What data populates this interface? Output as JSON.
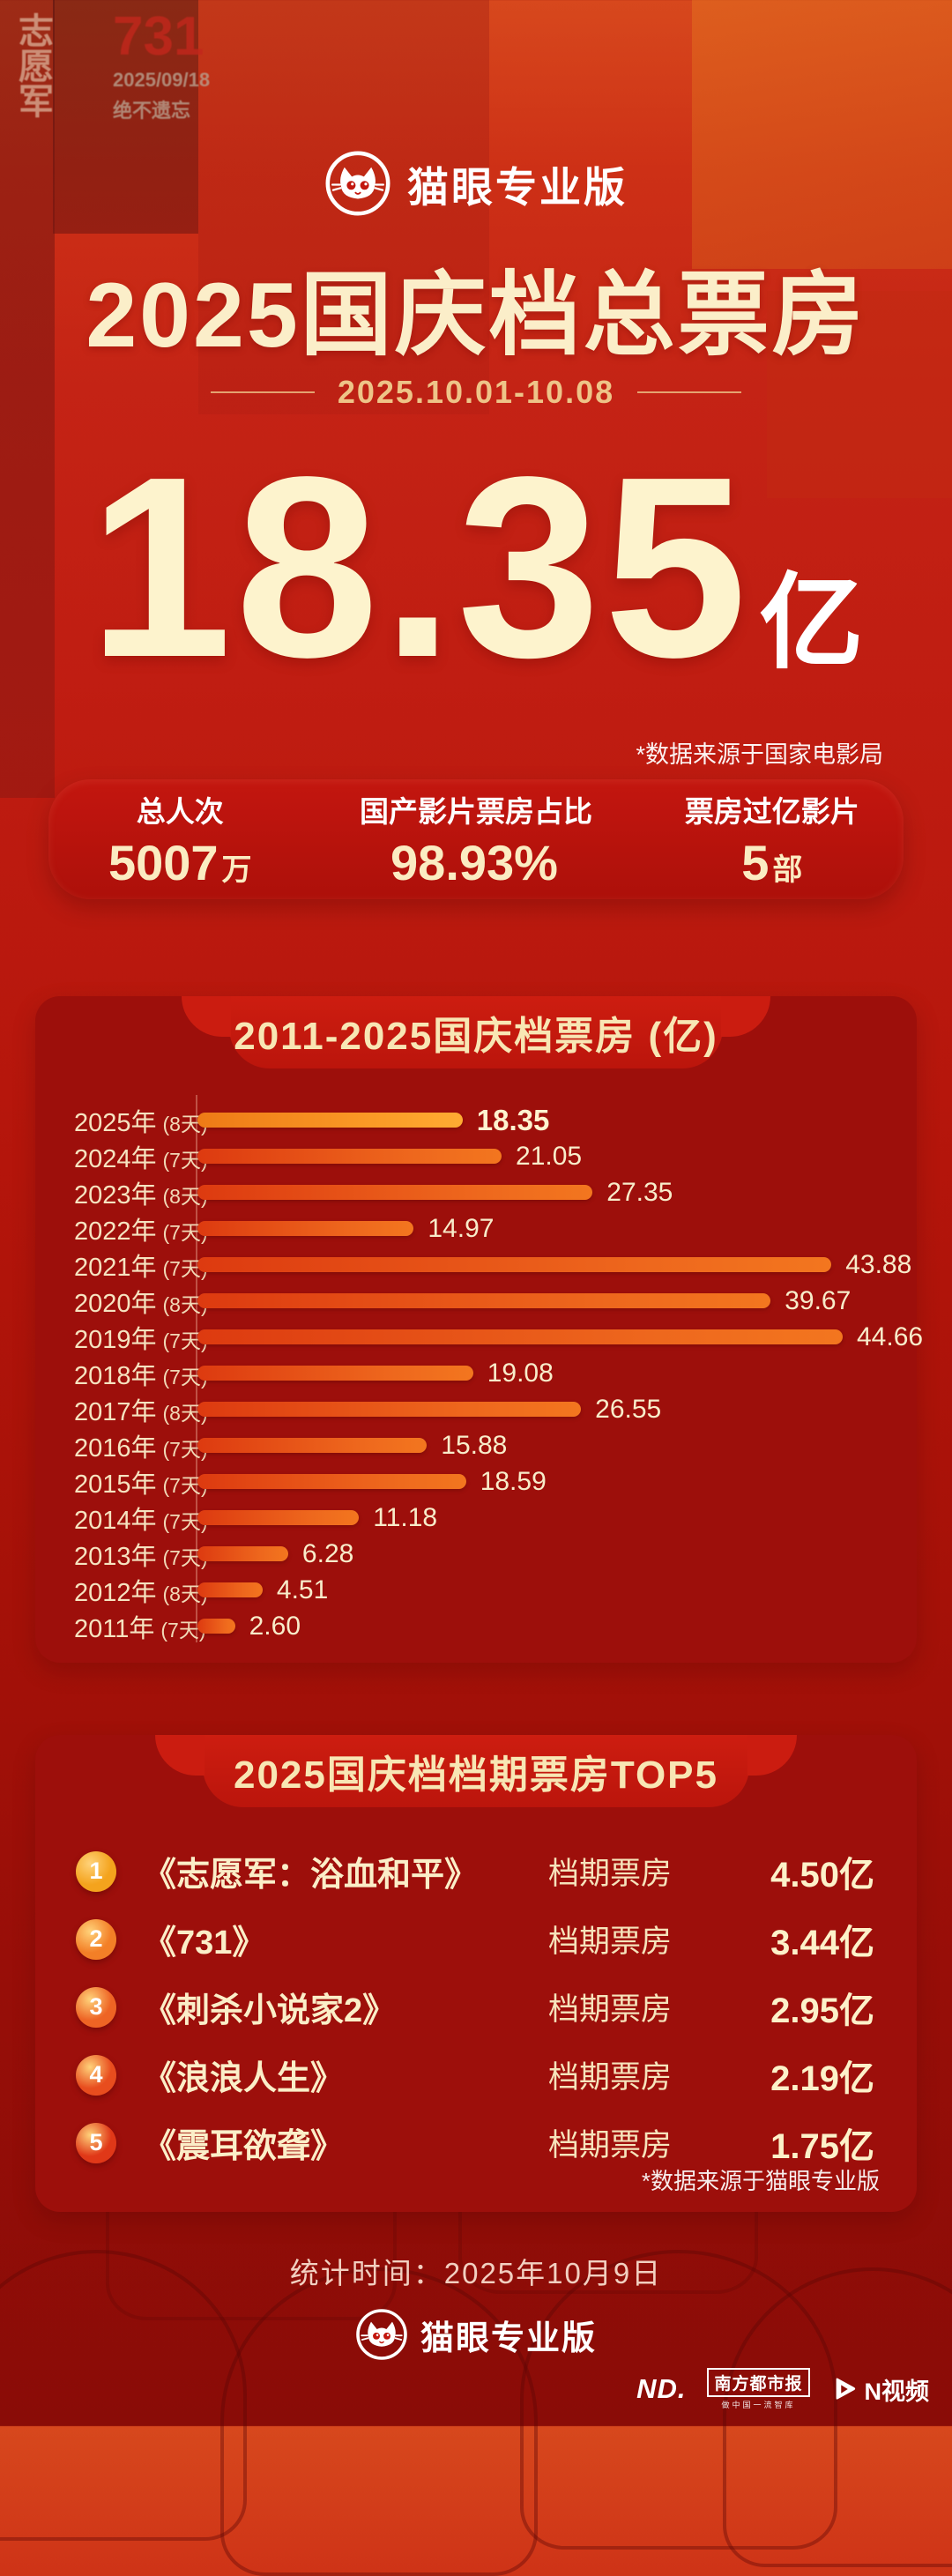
{
  "brand": {
    "name": "猫眼专业版"
  },
  "header": {
    "title": "2025国庆档总票房",
    "date_range": "2025.10.01-10.08"
  },
  "headline": {
    "value": "18.35",
    "unit": "亿",
    "source_note": "*数据来源于国家电影局"
  },
  "stats": {
    "items": [
      {
        "label": "总人次",
        "value": "5007",
        "unit": "万"
      },
      {
        "label": "国产影片票房占比",
        "value": "98.93%",
        "unit": ""
      },
      {
        "label": "票房过亿影片",
        "value": "5",
        "unit": "部"
      }
    ]
  },
  "chart_data": {
    "type": "bar",
    "orientation": "horizontal",
    "title": "2011-2025国庆档票房 (亿)",
    "unit": "亿",
    "categories": [
      "2025年",
      "2024年",
      "2023年",
      "2022年",
      "2021年",
      "2020年",
      "2019年",
      "2018年",
      "2017年",
      "2016年",
      "2015年",
      "2014年",
      "2013年",
      "2012年",
      "2011年"
    ],
    "period_days": [
      "(8天)",
      "(7天)",
      "(8天)",
      "(7天)",
      "(7天)",
      "(8天)",
      "(7天)",
      "(7天)",
      "(8天)",
      "(7天)",
      "(7天)",
      "(7天)",
      "(7天)",
      "(8天)",
      "(7天)"
    ],
    "values": [
      18.35,
      21.05,
      27.35,
      14.97,
      43.88,
      39.67,
      44.66,
      19.08,
      26.55,
      15.88,
      18.59,
      11.18,
      6.28,
      4.51,
      2.6
    ],
    "highlight_index": 0,
    "xlim": [
      0,
      48
    ],
    "grid": false,
    "legend": "none",
    "bar_color": "#ee5f1c",
    "highlight_color": "#f99b21"
  },
  "top5": {
    "title": "2025国庆档档期票房TOP5",
    "metric_label": "档期票房",
    "badge_colors": [
      "#f4a31d",
      "#f37f27",
      "#ee6424",
      "#e84d1e",
      "#e03818"
    ],
    "items": [
      {
        "rank": "1",
        "movie": "《志愿军：浴血和平》",
        "value": "4.50亿"
      },
      {
        "rank": "2",
        "movie": "《731》",
        "value": "3.44亿"
      },
      {
        "rank": "3",
        "movie": "《刺杀小说家2》",
        "value": "2.95亿"
      },
      {
        "rank": "4",
        "movie": "《浪浪人生》",
        "value": "2.19亿"
      },
      {
        "rank": "5",
        "movie": "《震耳欲聋》",
        "value": "1.75亿"
      }
    ],
    "source_note": "*数据来源于猫眼专业版"
  },
  "footer": {
    "stat_time": "统计时间：2025年10月9日",
    "brand": "猫眼专业版",
    "media": {
      "nd_mark": "ND.",
      "paper": "南方都市报",
      "paper_slogan": "做中国一流智库",
      "nvideo": "N视频"
    }
  },
  "background_posters": {
    "poster_title_1": "731",
    "poster_date": "2025/09/18",
    "poster_motto": "绝不遗忘",
    "poster_vertical": "志愿军"
  }
}
